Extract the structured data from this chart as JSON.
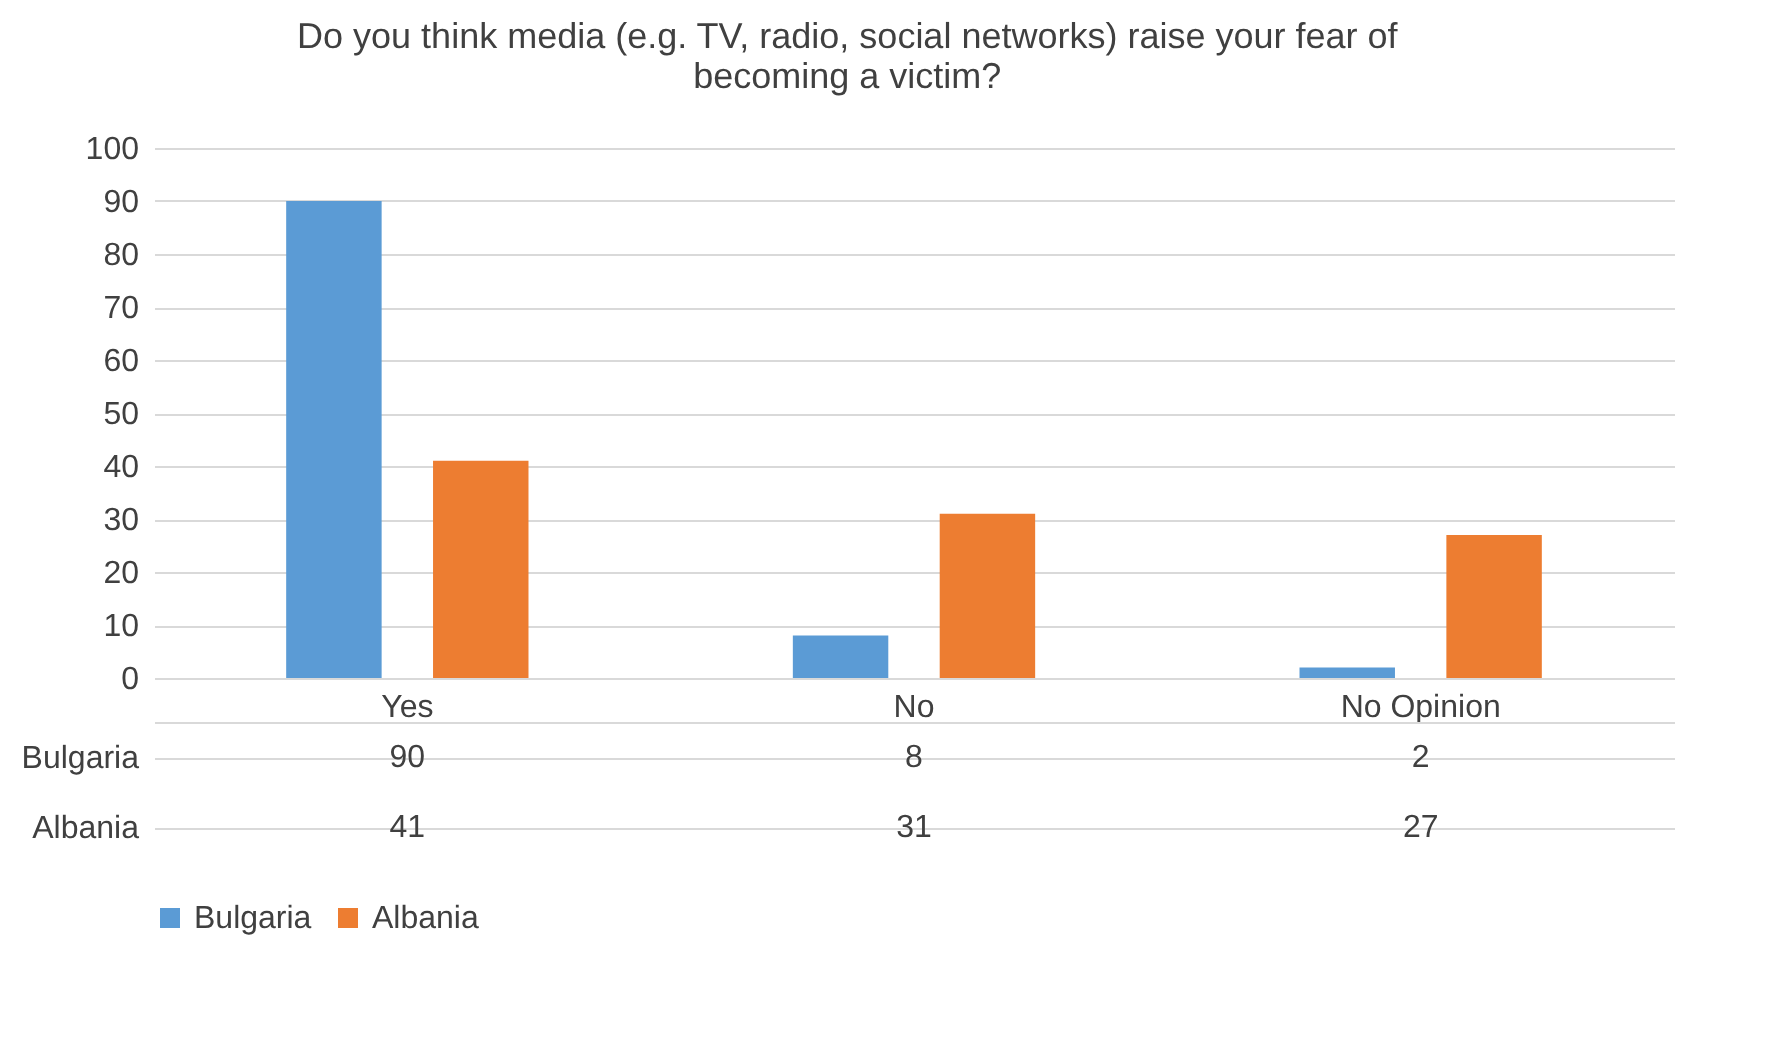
{
  "chart_data": {
    "type": "bar",
    "title": "Do you think media (e.g. TV, radio, social networks) raise your fear of becoming a victim?",
    "categories": [
      "Yes",
      "No",
      "No Opinion"
    ],
    "series": [
      {
        "name": "Bulgaria",
        "color": "#5b9bd5",
        "values": [
          90,
          8,
          2
        ]
      },
      {
        "name": "Albania",
        "color": "#ed7d31",
        "values": [
          41,
          31,
          27
        ]
      }
    ],
    "ylim": [
      0,
      100
    ],
    "yticks": [
      0,
      10,
      20,
      30,
      40,
      50,
      60,
      70,
      80,
      90,
      100
    ],
    "grid": "y",
    "legend": "bottom",
    "data_labels": true
  }
}
